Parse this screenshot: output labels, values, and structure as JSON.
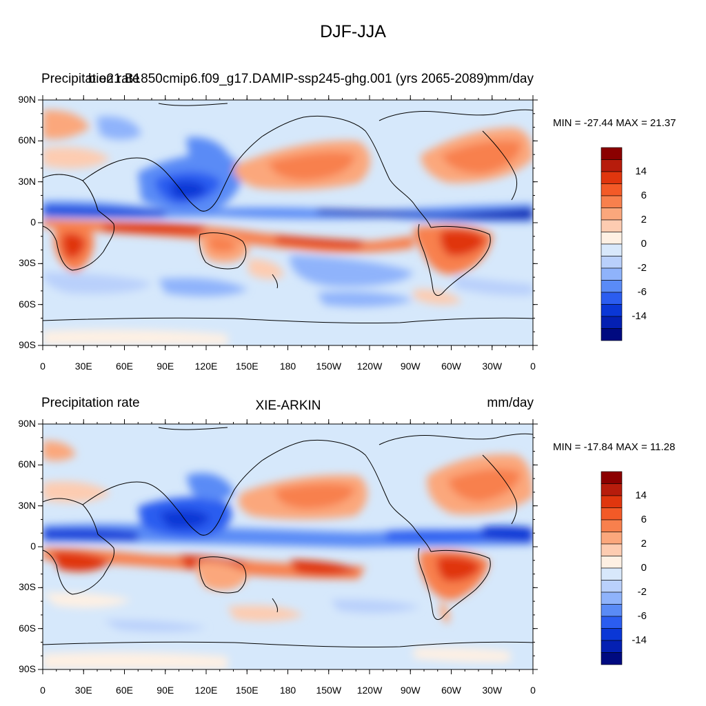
{
  "main_title": "DJF-JJA",
  "panels": [
    {
      "left_title": "Precipitation rate",
      "center_title": "b.e21.B1850cmip6.f09_g17.DAMIP-ssp245-ghg.001 (yrs 2065-2089)",
      "right_title": "mm/day",
      "stats": "MIN = -27.44 MAX =  21.37"
    },
    {
      "left_title": "Precipitation rate",
      "center_title": "XIE-ARKIN",
      "right_title": "mm/day",
      "stats": "MIN = -17.84 MAX =  11.28"
    }
  ],
  "lat_labels": [
    "90N",
    "60N",
    "30N",
    "0",
    "30S",
    "60S",
    "90S"
  ],
  "lon_labels": [
    "0",
    "30E",
    "60E",
    "90E",
    "120E",
    "150E",
    "180",
    "150W",
    "120W",
    "90W",
    "60W",
    "30W",
    "0"
  ],
  "colorbar": {
    "colors": [
      "#8b0000",
      "#b71c0c",
      "#e0360e",
      "#f35a27",
      "#f8804d",
      "#fba77c",
      "#fdccb1",
      "#fef0e3",
      "#d8e8fb",
      "#b9d0fb",
      "#8fb3fb",
      "#5a8bf6",
      "#2b5df0",
      "#0a37d6",
      "#0420b2",
      "#000a80"
    ],
    "labels": [
      "14",
      "6",
      "2",
      "0",
      "-2",
      "-6",
      "-14"
    ]
  },
  "colors": {
    "background": "#d6e8fb",
    "land_line": "#000000",
    "strong_wet": "#0a37d6",
    "strong_dry": "#e0360e"
  }
}
